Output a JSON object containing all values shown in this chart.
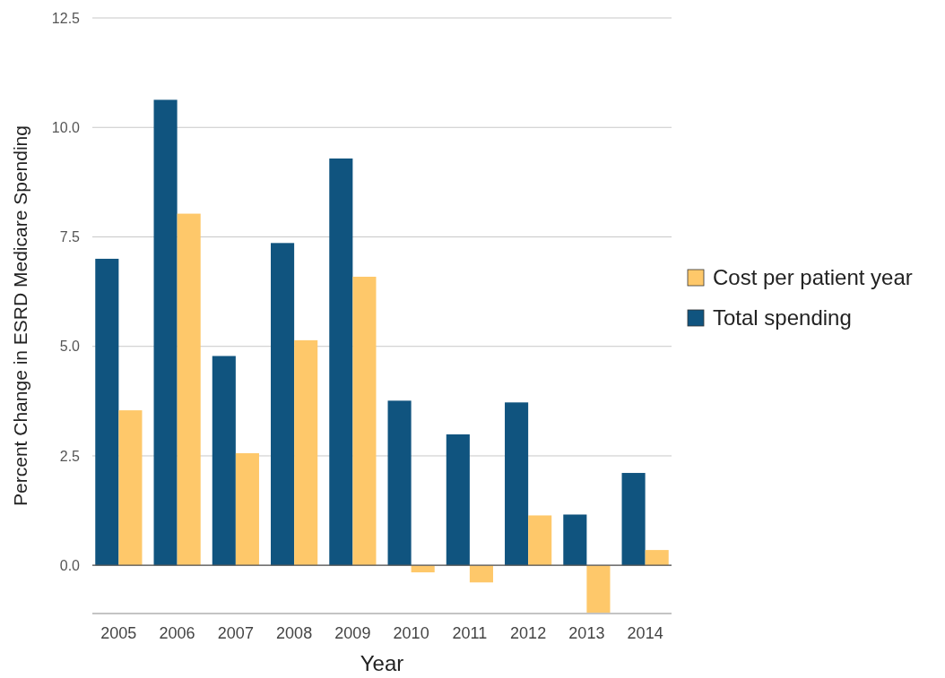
{
  "chart_data": {
    "type": "bar",
    "xlabel": "Year",
    "ylabel": "Percent Change in ESRD Medicare Spending",
    "categories": [
      "2005",
      "2006",
      "2007",
      "2008",
      "2009",
      "2010",
      "2011",
      "2012",
      "2013",
      "2014"
    ],
    "series": [
      {
        "name": "Total spending",
        "color": "#10547f",
        "values": [
          7.0,
          10.63,
          4.78,
          7.36,
          9.29,
          3.76,
          2.99,
          3.72,
          1.16,
          2.11
        ]
      },
      {
        "name": "Cost per patient year",
        "color": "#fec86a",
        "values": [
          3.54,
          8.03,
          2.56,
          5.14,
          6.59,
          -0.16,
          -0.39,
          1.14,
          -1.08,
          0.35
        ]
      }
    ],
    "ylim": [
      -1.1,
      12.5
    ],
    "yticks": [
      {
        "value": 0,
        "label": "0.0"
      },
      {
        "value": 2.5,
        "label": "2.5"
      },
      {
        "value": 5,
        "label": "5.0"
      },
      {
        "value": 7.5,
        "label": "7.5"
      },
      {
        "value": 10,
        "label": "10.0"
      },
      {
        "value": 12.5,
        "label": "12.5"
      }
    ],
    "grid": "y",
    "legend": "right"
  }
}
